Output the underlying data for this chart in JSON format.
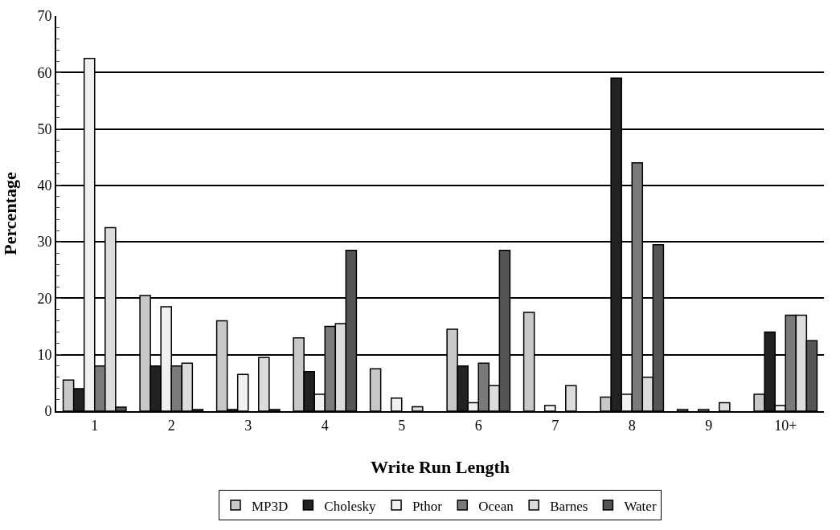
{
  "chart_data": {
    "type": "bar",
    "xlabel": "Write Run Length",
    "ylabel": "Percentage",
    "categories": [
      "1",
      "2",
      "3",
      "4",
      "5",
      "6",
      "7",
      "8",
      "9",
      "10+"
    ],
    "series": [
      {
        "name": "MP3D",
        "color": "#c8c8c8",
        "values": [
          5.5,
          20.5,
          16,
          13,
          7.5,
          14.5,
          17.5,
          2.5,
          0.3,
          3
        ]
      },
      {
        "name": "Cholesky",
        "color": "#222222",
        "values": [
          4,
          8,
          0.3,
          7,
          0,
          8,
          0,
          59,
          0,
          14
        ]
      },
      {
        "name": "Pthor",
        "color": "#f0f0f0",
        "values": [
          62.5,
          18.5,
          6.5,
          3,
          2.3,
          1.5,
          1,
          3,
          0.3,
          1
        ]
      },
      {
        "name": "Ocean",
        "color": "#7a7a7a",
        "values": [
          8,
          8,
          0,
          15,
          0,
          8.5,
          0,
          44,
          0,
          17
        ]
      },
      {
        "name": "Barnes",
        "color": "#dcdcdc",
        "values": [
          32.5,
          8.5,
          9.5,
          15.5,
          0.8,
          4.5,
          4.5,
          6,
          1.5,
          17
        ]
      },
      {
        "name": "Water",
        "color": "#555555",
        "values": [
          0.7,
          0.3,
          0.3,
          28.5,
          0,
          28.5,
          0,
          29.5,
          0,
          12.5
        ]
      }
    ],
    "ylim": [
      0,
      70
    ],
    "yticks": [
      0,
      10,
      20,
      30,
      40,
      50,
      60,
      70
    ],
    "grid": "y",
    "legend": "bottom"
  }
}
